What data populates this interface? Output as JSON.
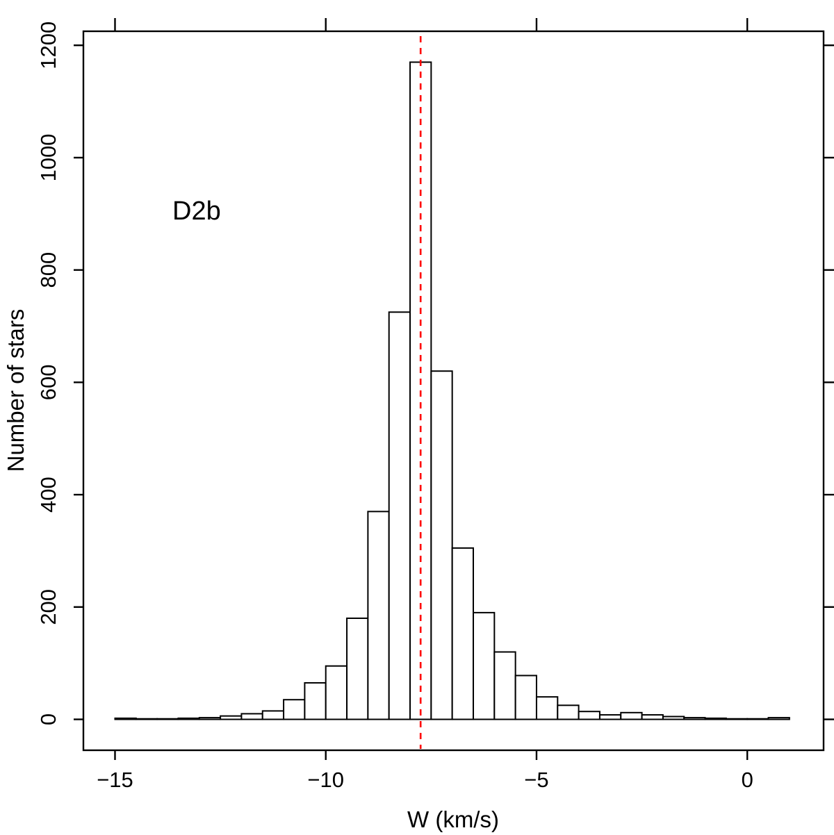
{
  "chart_data": {
    "type": "histogram",
    "title": "",
    "annotation": "D2b",
    "xlabel": "W (km/s)",
    "ylabel": "Number of stars",
    "xlim": [
      -15.75,
      1.81
    ],
    "ylim": [
      -55,
      1225
    ],
    "x_ticks": [
      -15,
      -10,
      -5,
      0
    ],
    "x_tick_labels": [
      "−15",
      "−10",
      "−5",
      "0"
    ],
    "y_ticks": [
      0,
      200,
      400,
      600,
      800,
      1000,
      1200
    ],
    "y_tick_labels": [
      "0",
      "200",
      "400",
      "600",
      "800",
      "1000",
      "1200"
    ],
    "bin_start": -15,
    "bin_width": 0.5,
    "counts": [
      2,
      1,
      1,
      2,
      3,
      6,
      10,
      15,
      35,
      65,
      95,
      180,
      370,
      725,
      1170,
      620,
      305,
      190,
      120,
      78,
      40,
      25,
      14,
      8,
      12,
      8,
      5,
      3,
      2,
      1,
      1,
      3
    ],
    "bar_fill": "#ffffff",
    "bar_stroke": "#000000",
    "axis_color": "#000000",
    "vline": {
      "x": -7.75,
      "color": "#ff0000",
      "style": "dashed"
    }
  }
}
